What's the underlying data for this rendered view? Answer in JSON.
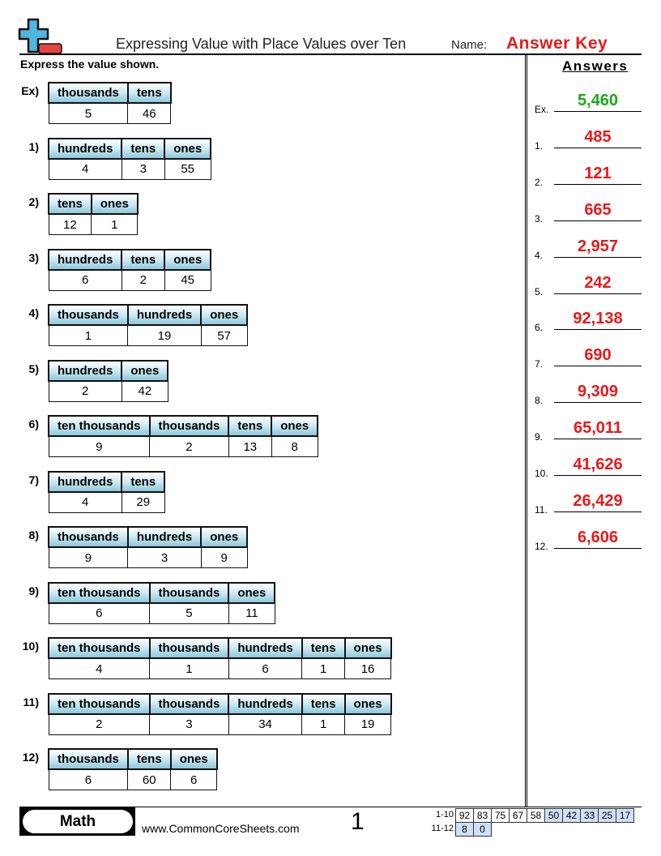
{
  "header": {
    "title": "Expressing Value with Place Values over Ten",
    "name_label": "Name:",
    "name_value": "Answer Key",
    "instructions": "Express the value shown.",
    "answers_title": "Answers"
  },
  "problems": [
    {
      "label": "Ex)",
      "columns": [
        "thousands",
        "tens"
      ],
      "values": [
        "5",
        "46"
      ]
    },
    {
      "label": "1)",
      "columns": [
        "hundreds",
        "tens",
        "ones"
      ],
      "values": [
        "4",
        "3",
        "55"
      ]
    },
    {
      "label": "2)",
      "columns": [
        "tens",
        "ones"
      ],
      "values": [
        "12",
        "1"
      ]
    },
    {
      "label": "3)",
      "columns": [
        "hundreds",
        "tens",
        "ones"
      ],
      "values": [
        "6",
        "2",
        "45"
      ]
    },
    {
      "label": "4)",
      "columns": [
        "thousands",
        "hundreds",
        "ones"
      ],
      "values": [
        "1",
        "19",
        "57"
      ]
    },
    {
      "label": "5)",
      "columns": [
        "hundreds",
        "ones"
      ],
      "values": [
        "2",
        "42"
      ]
    },
    {
      "label": "6)",
      "columns": [
        "ten thousands",
        "thousands",
        "tens",
        "ones"
      ],
      "values": [
        "9",
        "2",
        "13",
        "8"
      ]
    },
    {
      "label": "7)",
      "columns": [
        "hundreds",
        "tens"
      ],
      "values": [
        "4",
        "29"
      ]
    },
    {
      "label": "8)",
      "columns": [
        "thousands",
        "hundreds",
        "ones"
      ],
      "values": [
        "9",
        "3",
        "9"
      ]
    },
    {
      "label": "9)",
      "columns": [
        "ten thousands",
        "thousands",
        "ones"
      ],
      "values": [
        "6",
        "5",
        "11"
      ]
    },
    {
      "label": "10)",
      "columns": [
        "ten thousands",
        "thousands",
        "hundreds",
        "tens",
        "ones"
      ],
      "values": [
        "4",
        "1",
        "6",
        "1",
        "16"
      ]
    },
    {
      "label": "11)",
      "columns": [
        "ten thousands",
        "thousands",
        "hundreds",
        "tens",
        "ones"
      ],
      "values": [
        "2",
        "3",
        "34",
        "1",
        "19"
      ]
    },
    {
      "label": "12)",
      "columns": [
        "thousands",
        "tens",
        "ones"
      ],
      "values": [
        "6",
        "60",
        "6"
      ]
    }
  ],
  "answers": [
    {
      "num": "Ex.",
      "value": "5,460",
      "color": "#1aa81a"
    },
    {
      "num": "1.",
      "value": "485"
    },
    {
      "num": "2.",
      "value": "121"
    },
    {
      "num": "3.",
      "value": "665"
    },
    {
      "num": "4.",
      "value": "2,957"
    },
    {
      "num": "5.",
      "value": "242"
    },
    {
      "num": "6.",
      "value": "92,138"
    },
    {
      "num": "7.",
      "value": "690"
    },
    {
      "num": "8.",
      "value": "9,309"
    },
    {
      "num": "9.",
      "value": "65,011"
    },
    {
      "num": "10.",
      "value": "41,626"
    },
    {
      "num": "11.",
      "value": "26,429"
    },
    {
      "num": "12.",
      "value": "6,606"
    }
  ],
  "footer": {
    "subject": "Math",
    "site": "www.CommonCoreSheets.com",
    "page": "1",
    "score_rows": [
      {
        "label": "1-10",
        "scores": [
          "92",
          "83",
          "75",
          "67",
          "58",
          "50",
          "42",
          "33",
          "25",
          "17"
        ],
        "shaded_from": 5
      },
      {
        "label": "11-12",
        "scores": [
          "8",
          "0"
        ],
        "shaded_from": 0
      }
    ]
  },
  "colors": {
    "answer": "#e8191b",
    "example_answer": "#1aa81a",
    "header_gradient_bottom": "#8fc6da",
    "score_shade": "#cfe0f7"
  }
}
